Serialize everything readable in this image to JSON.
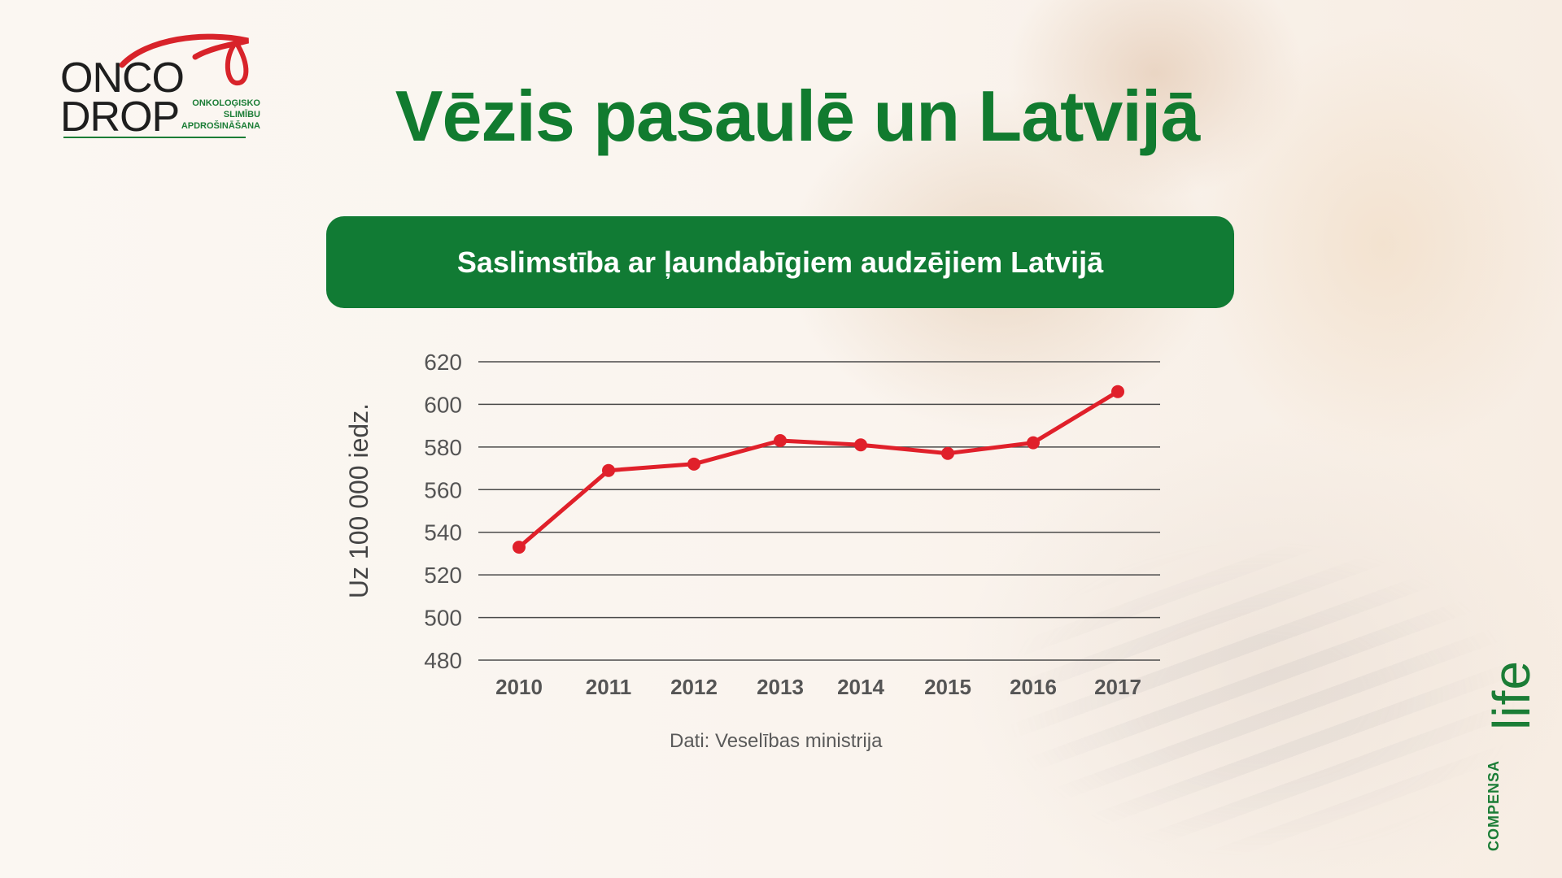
{
  "logo": {
    "line1": "ONCO",
    "line2": "DROP",
    "sub1": "ONKOLOĢISKO",
    "sub2": "SLIMĪBU",
    "sub3": "APDROŠINĀŠANA"
  },
  "title": "Vēzis pasaulē un Latvijā",
  "banner": "Saslimstība ar ļaundabīgiem audzējiem Latvijā",
  "source": "Dati: Veselības ministrija",
  "brand": {
    "word": "life",
    "company": "COMPENSA"
  },
  "colors": {
    "green": "#117b34",
    "line": "#e0202a",
    "grid": "#4a4a4a"
  },
  "chart_data": {
    "type": "line",
    "title": "Saslimstība ar ļaundabīgiem audzējiem Latvijā",
    "xlabel": "",
    "ylabel": "Uz 100 000 iedz.",
    "categories": [
      "2010",
      "2011",
      "2012",
      "2013",
      "2014",
      "2015",
      "2016",
      "2017"
    ],
    "values": [
      533,
      569,
      572,
      583,
      581,
      577,
      582,
      606
    ],
    "ylim": [
      480,
      620
    ],
    "yticks": [
      "620",
      "600",
      "580",
      "560",
      "540",
      "520",
      "500",
      "480"
    ],
    "grid": true,
    "legend": "none"
  }
}
